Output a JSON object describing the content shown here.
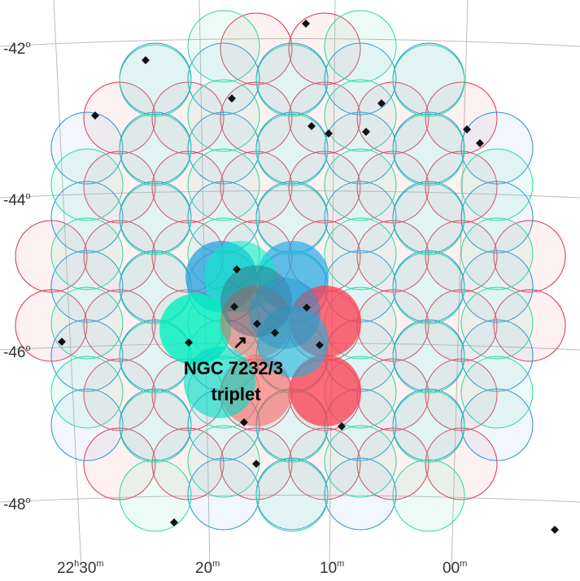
{
  "dec_labels": [
    {
      "value": "-42",
      "unit": "o"
    },
    {
      "value": "-44",
      "unit": "o"
    },
    {
      "value": "-46",
      "unit": "o"
    },
    {
      "value": "-48",
      "unit": "o"
    }
  ],
  "ra_labels": [
    [
      {
        "value": "22",
        "unit": "h"
      },
      {
        "value": "30",
        "unit": "m"
      }
    ],
    [
      {
        "value": "20",
        "unit": "m"
      }
    ],
    [
      {
        "value": "10",
        "unit": "m"
      }
    ],
    [
      {
        "value": "00",
        "unit": "m"
      }
    ]
  ],
  "annotation": {
    "arrow": "↗",
    "line1": "NGC 7232/3",
    "line2": "triplet"
  }
}
